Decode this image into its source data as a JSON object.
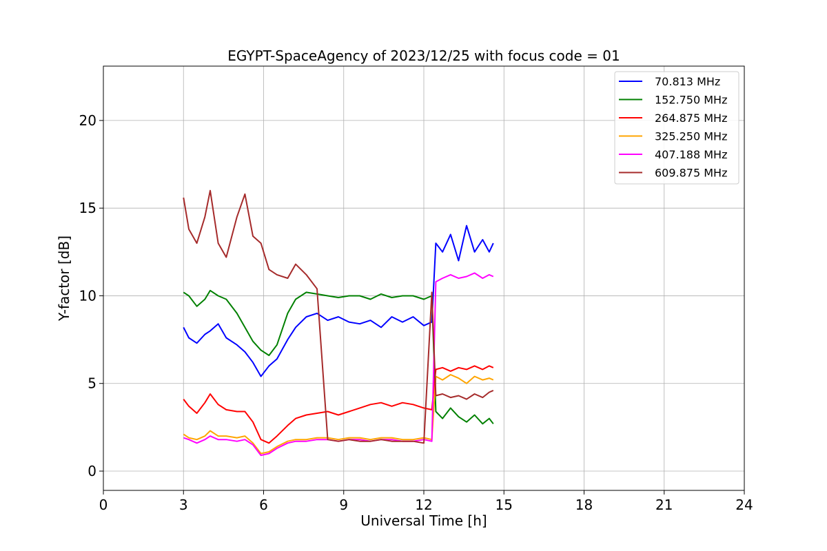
{
  "chart_data": {
    "type": "line",
    "title": "EGYPT-SpaceAgency of 2023/12/25 with focus code = 01",
    "xlabel": "Universal Time [h]",
    "ylabel": "Y-factor [dB]",
    "xlim": [
      0,
      24
    ],
    "ylim": [
      -1.1,
      23.1
    ],
    "xticks": [
      0,
      3,
      6,
      9,
      12,
      15,
      18,
      21,
      24
    ],
    "yticks": [
      0,
      5,
      10,
      15,
      20
    ],
    "grid": true,
    "legend_position": "top-right",
    "series": [
      {
        "name": " 70.813 MHz",
        "color": "#0000ff",
        "x": [
          3.0,
          3.2,
          3.5,
          3.8,
          4.0,
          4.3,
          4.6,
          5.0,
          5.3,
          5.6,
          5.9,
          6.2,
          6.5,
          6.9,
          7.2,
          7.6,
          8.0,
          8.4,
          8.8,
          9.2,
          9.6,
          10.0,
          10.4,
          10.8,
          11.2,
          11.6,
          12.0,
          12.3,
          12.45,
          12.7,
          13.0,
          13.3,
          13.6,
          13.9,
          14.2,
          14.45,
          14.6
        ],
        "y": [
          8.2,
          7.6,
          7.3,
          7.8,
          8.0,
          8.4,
          7.6,
          7.2,
          6.8,
          6.2,
          5.4,
          6.0,
          6.4,
          7.5,
          8.2,
          8.8,
          9.0,
          8.6,
          8.8,
          8.5,
          8.4,
          8.6,
          8.2,
          8.8,
          8.5,
          8.8,
          8.3,
          8.5,
          13.0,
          12.5,
          13.5,
          12.0,
          14.0,
          12.5,
          13.2,
          12.5,
          13.0
        ]
      },
      {
        "name": "152.750 MHz",
        "color": "#008000",
        "x": [
          3.0,
          3.2,
          3.5,
          3.8,
          4.0,
          4.3,
          4.6,
          5.0,
          5.3,
          5.6,
          5.9,
          6.2,
          6.5,
          6.9,
          7.2,
          7.6,
          8.0,
          8.4,
          8.8,
          9.2,
          9.6,
          10.0,
          10.4,
          10.8,
          11.2,
          11.6,
          12.0,
          12.3,
          12.45,
          12.7,
          13.0,
          13.3,
          13.6,
          13.9,
          14.2,
          14.45,
          14.6
        ],
        "y": [
          10.2,
          10.0,
          9.4,
          9.8,
          10.3,
          10.0,
          9.8,
          9.0,
          8.2,
          7.4,
          6.9,
          6.6,
          7.2,
          9.0,
          9.8,
          10.2,
          10.1,
          10.0,
          9.9,
          10.0,
          10.0,
          9.8,
          10.1,
          9.9,
          10.0,
          10.0,
          9.8,
          10.0,
          3.4,
          3.0,
          3.6,
          3.1,
          2.8,
          3.2,
          2.7,
          3.0,
          2.7
        ]
      },
      {
        "name": "264.875 MHz",
        "color": "#ff0000",
        "x": [
          3.0,
          3.2,
          3.5,
          3.8,
          4.0,
          4.3,
          4.6,
          5.0,
          5.3,
          5.6,
          5.9,
          6.2,
          6.5,
          6.9,
          7.2,
          7.6,
          8.0,
          8.4,
          8.8,
          9.2,
          9.6,
          10.0,
          10.4,
          10.8,
          11.2,
          11.6,
          12.0,
          12.3,
          12.45,
          12.7,
          13.0,
          13.3,
          13.6,
          13.9,
          14.2,
          14.45,
          14.6
        ],
        "y": [
          4.1,
          3.7,
          3.3,
          3.9,
          4.4,
          3.8,
          3.5,
          3.4,
          3.4,
          2.8,
          1.8,
          1.6,
          2.0,
          2.6,
          3.0,
          3.2,
          3.3,
          3.4,
          3.2,
          3.4,
          3.6,
          3.8,
          3.9,
          3.7,
          3.9,
          3.8,
          3.6,
          3.5,
          5.8,
          5.9,
          5.7,
          5.9,
          5.8,
          6.0,
          5.8,
          6.0,
          5.9
        ]
      },
      {
        "name": "325.250 MHz",
        "color": "#ffa500",
        "x": [
          3.0,
          3.2,
          3.5,
          3.8,
          4.0,
          4.3,
          4.6,
          5.0,
          5.3,
          5.6,
          5.9,
          6.2,
          6.5,
          6.9,
          7.2,
          7.6,
          8.0,
          8.4,
          8.8,
          9.2,
          9.6,
          10.0,
          10.4,
          10.8,
          11.2,
          11.6,
          12.0,
          12.3,
          12.45,
          12.7,
          13.0,
          13.3,
          13.6,
          13.9,
          14.2,
          14.45,
          14.6
        ],
        "y": [
          2.1,
          1.9,
          1.8,
          2.0,
          2.3,
          2.0,
          2.0,
          1.9,
          2.0,
          1.6,
          1.0,
          1.1,
          1.4,
          1.7,
          1.8,
          1.8,
          1.9,
          1.9,
          1.8,
          1.9,
          1.9,
          1.8,
          1.9,
          1.9,
          1.8,
          1.8,
          1.9,
          1.8,
          5.4,
          5.2,
          5.5,
          5.3,
          5.0,
          5.4,
          5.2,
          5.3,
          5.2
        ]
      },
      {
        "name": "407.188 MHz",
        "color": "#ff00ff",
        "x": [
          3.0,
          3.2,
          3.5,
          3.8,
          4.0,
          4.3,
          4.6,
          5.0,
          5.3,
          5.6,
          5.9,
          6.2,
          6.5,
          6.9,
          7.2,
          7.6,
          8.0,
          8.4,
          8.8,
          9.2,
          9.6,
          10.0,
          10.4,
          10.8,
          11.2,
          11.6,
          12.0,
          12.3,
          12.45,
          12.7,
          13.0,
          13.3,
          13.6,
          13.9,
          14.2,
          14.45,
          14.6
        ],
        "y": [
          1.9,
          1.8,
          1.6,
          1.8,
          2.0,
          1.8,
          1.8,
          1.7,
          1.8,
          1.5,
          0.9,
          1.0,
          1.3,
          1.6,
          1.7,
          1.7,
          1.8,
          1.8,
          1.7,
          1.8,
          1.8,
          1.7,
          1.8,
          1.8,
          1.7,
          1.7,
          1.8,
          1.7,
          10.8,
          11.0,
          11.2,
          11.0,
          11.1,
          11.3,
          11.0,
          11.2,
          11.1
        ]
      },
      {
        "name": "609.875 MHz",
        "color": "#a52a2a",
        "x": [
          3.0,
          3.2,
          3.5,
          3.8,
          4.0,
          4.3,
          4.6,
          5.0,
          5.3,
          5.6,
          5.9,
          6.2,
          6.5,
          6.9,
          7.2,
          7.6,
          8.0,
          8.4,
          8.8,
          9.2,
          9.6,
          10.0,
          10.4,
          10.8,
          11.2,
          11.6,
          12.0,
          12.3,
          12.45,
          12.7,
          13.0,
          13.3,
          13.6,
          13.9,
          14.2,
          14.45,
          14.6
        ],
        "y": [
          15.6,
          13.8,
          13.0,
          14.5,
          16.0,
          13.0,
          12.2,
          14.5,
          15.8,
          13.4,
          13.0,
          11.5,
          11.2,
          11.0,
          11.8,
          11.2,
          10.4,
          1.8,
          1.7,
          1.8,
          1.7,
          1.7,
          1.8,
          1.7,
          1.7,
          1.7,
          1.6,
          10.2,
          4.3,
          4.4,
          4.2,
          4.3,
          4.1,
          4.4,
          4.2,
          4.5,
          4.6
        ]
      }
    ]
  }
}
